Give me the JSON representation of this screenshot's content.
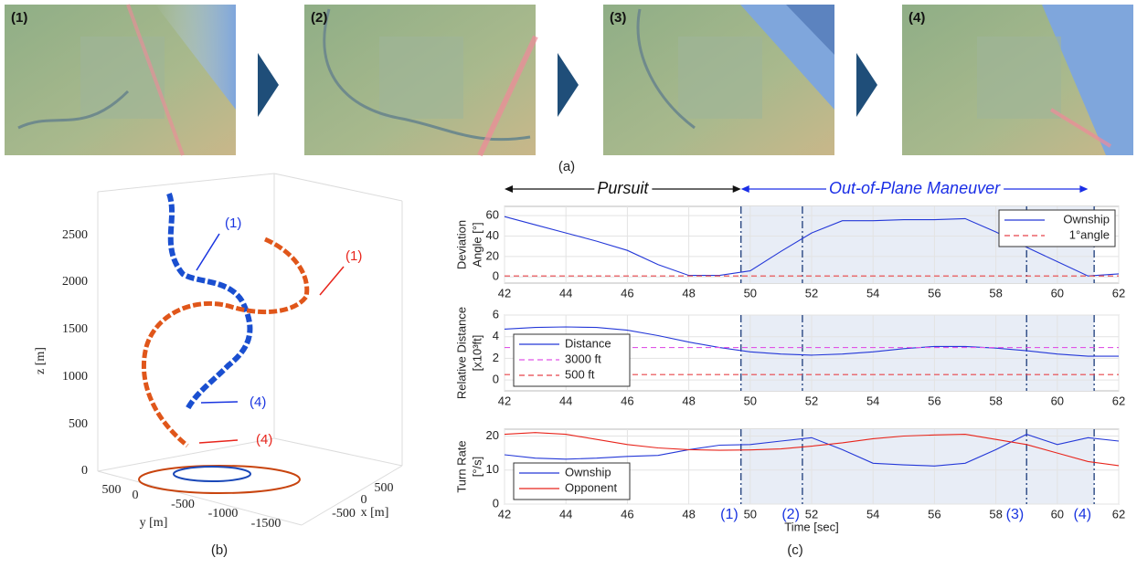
{
  "screenshots": {
    "labels": [
      "(1)",
      "(2)",
      "(3)",
      "(4)"
    ],
    "caption": "(a)"
  },
  "plot_3d": {
    "caption": "(b)",
    "zlabel": "z [m]",
    "ylabel": "y [m]",
    "xlabel": "x [m]",
    "zticks": [
      0,
      500,
      1000,
      1500,
      2000,
      2500
    ],
    "yticks": [
      500,
      0,
      -500,
      -1000,
      -1500
    ],
    "xticks": [
      500,
      0,
      -500
    ],
    "annotations": [
      {
        "label": "(1)",
        "color": "#1a35e0"
      },
      {
        "label": "(1)",
        "color": "#e8251c"
      },
      {
        "label": "(4)",
        "color": "#1a35e0"
      },
      {
        "label": "(4)",
        "color": "#e8251c"
      }
    ]
  },
  "caption_c": "(c)",
  "chart_data": [
    {
      "type": "line",
      "ylabel": [
        "Deviation",
        "Angle [°]"
      ],
      "x": [
        42,
        43,
        44,
        45,
        46,
        47,
        48,
        49,
        50,
        51,
        52,
        53,
        54,
        55,
        56,
        57,
        58,
        59,
        60,
        61,
        62
      ],
      "series": [
        {
          "name": "Ownship",
          "color": "#2438d8",
          "dashed": false,
          "values": [
            59,
            51,
            43,
            35,
            26,
            12,
            1.5,
            1.5,
            6,
            25,
            43,
            55,
            55,
            56,
            56,
            57,
            44,
            29,
            15,
            1,
            3
          ]
        },
        {
          "name": "1°angle",
          "color": "#e8454a",
          "dashed": true,
          "values": [
            1,
            1,
            1,
            1,
            1,
            1,
            1,
            1,
            1,
            1,
            1,
            1,
            1,
            1,
            1,
            1,
            1,
            1,
            1,
            1,
            1
          ]
        }
      ],
      "xlim": [
        42,
        62
      ],
      "xticks": [
        42,
        44,
        46,
        48,
        50,
        52,
        54,
        56,
        58,
        60,
        62
      ],
      "ylim": [
        -6,
        69
      ],
      "yticks": [
        0,
        20,
        40,
        60
      ],
      "grid": true,
      "legend": "upper right",
      "phases": [
        {
          "label": "Pursuit",
          "start": 42,
          "end": 49.7,
          "color": "#111111"
        },
        {
          "label": "Out-of-Plane Maneuver",
          "start": 49.7,
          "end": 61,
          "color": "#1a2ee6"
        }
      ]
    },
    {
      "type": "line",
      "ylabel": [
        "Relative Distance",
        "[x10³ft]"
      ],
      "x": [
        42,
        43,
        44,
        45,
        46,
        47,
        48,
        49,
        50,
        51,
        52,
        53,
        54,
        55,
        56,
        57,
        58,
        59,
        60,
        61,
        62
      ],
      "series": [
        {
          "name": "Distance",
          "color": "#2438d8",
          "dashed": false,
          "values": [
            4.7,
            4.85,
            4.9,
            4.85,
            4.6,
            4.1,
            3.5,
            3.0,
            2.6,
            2.4,
            2.3,
            2.4,
            2.6,
            2.9,
            3.1,
            3.1,
            2.95,
            2.7,
            2.4,
            2.2,
            2.2
          ]
        },
        {
          "name": "3000 ft",
          "color": "#e055e6",
          "dashed": true,
          "values": [
            3,
            3,
            3,
            3,
            3,
            3,
            3,
            3,
            3,
            3,
            3,
            3,
            3,
            3,
            3,
            3,
            3,
            3,
            3,
            3,
            3
          ]
        },
        {
          "name": "500 ft",
          "color": "#e8454a",
          "dashed": true,
          "values": [
            0.5,
            0.5,
            0.5,
            0.5,
            0.5,
            0.5,
            0.5,
            0.5,
            0.5,
            0.5,
            0.5,
            0.5,
            0.5,
            0.5,
            0.5,
            0.5,
            0.5,
            0.5,
            0.5,
            0.5,
            0.5
          ]
        }
      ],
      "xlim": [
        42,
        62
      ],
      "xticks": [
        42,
        44,
        46,
        48,
        50,
        52,
        54,
        56,
        58,
        60,
        62
      ],
      "ylim": [
        -1,
        6
      ],
      "yticks": [
        0,
        2,
        4,
        6
      ],
      "grid": true,
      "legend": "lower left"
    },
    {
      "type": "line",
      "ylabel": [
        "Turn Rate",
        "[°/s]"
      ],
      "xlabel": "Time [sec]",
      "x": [
        42,
        43,
        44,
        45,
        46,
        47,
        48,
        49,
        50,
        51,
        52,
        53,
        54,
        55,
        56,
        57,
        58,
        59,
        60,
        61,
        62
      ],
      "series": [
        {
          "name": "Ownship",
          "color": "#2438d8",
          "dashed": false,
          "values": [
            14.5,
            13.5,
            13.2,
            13.5,
            14,
            14.3,
            16,
            17.3,
            17.5,
            18.5,
            19.5,
            16,
            12,
            11.5,
            11.2,
            12,
            16,
            20.5,
            17.5,
            19.5,
            18.5
          ]
        },
        {
          "name": "Opponent",
          "color": "#e8251c",
          "dashed": false,
          "values": [
            20.5,
            21,
            20.5,
            19,
            17.5,
            16.5,
            16,
            15.8,
            15.9,
            16.2,
            17,
            18,
            19.2,
            20,
            20.3,
            20.5,
            19,
            17.5,
            15,
            12.5,
            11.3
          ]
        }
      ],
      "xlim": [
        42,
        62
      ],
      "xticks": [
        42,
        44,
        46,
        48,
        50,
        52,
        54,
        56,
        58,
        60,
        62
      ],
      "ylim": [
        0,
        22
      ],
      "yticks": [
        0,
        10,
        20
      ],
      "grid": true,
      "legend": "lower left",
      "events": [
        {
          "label": "(1)",
          "x": 49.7
        },
        {
          "label": "(2)",
          "x": 51.7
        },
        {
          "label": "(3)",
          "x": 59.0
        },
        {
          "label": "(4)",
          "x": 61.2
        }
      ]
    }
  ]
}
